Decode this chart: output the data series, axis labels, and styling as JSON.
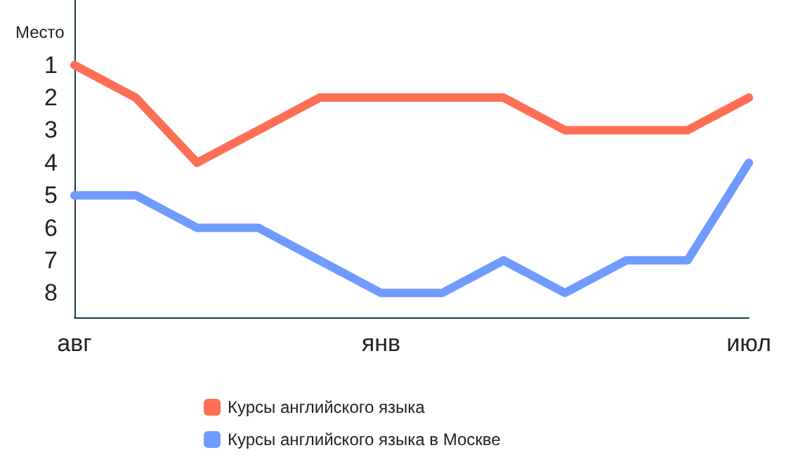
{
  "chart_data": {
    "type": "line",
    "ylabel": "Место",
    "categories": [
      "авг",
      null,
      null,
      null,
      null,
      "янв",
      null,
      null,
      null,
      null,
      null,
      "июл"
    ],
    "series": [
      {
        "name": "Курсы английского языка",
        "color": "#ff6f55",
        "values": [
          1,
          2,
          4,
          3,
          2,
          2,
          2,
          2,
          3,
          3,
          3,
          2
        ]
      },
      {
        "name": "Курсы английского языка в Москве",
        "color": "#6f9bff",
        "values": [
          5,
          5,
          6,
          6,
          7,
          8,
          8,
          7,
          8,
          7,
          7,
          4
        ]
      }
    ],
    "ylim": [
      8.75,
      -1
    ],
    "yticks": [
      1,
      2,
      3,
      4,
      5,
      6,
      7,
      8
    ],
    "grid": false,
    "legend": "bottom",
    "marker": "none",
    "line_style": "solid"
  }
}
